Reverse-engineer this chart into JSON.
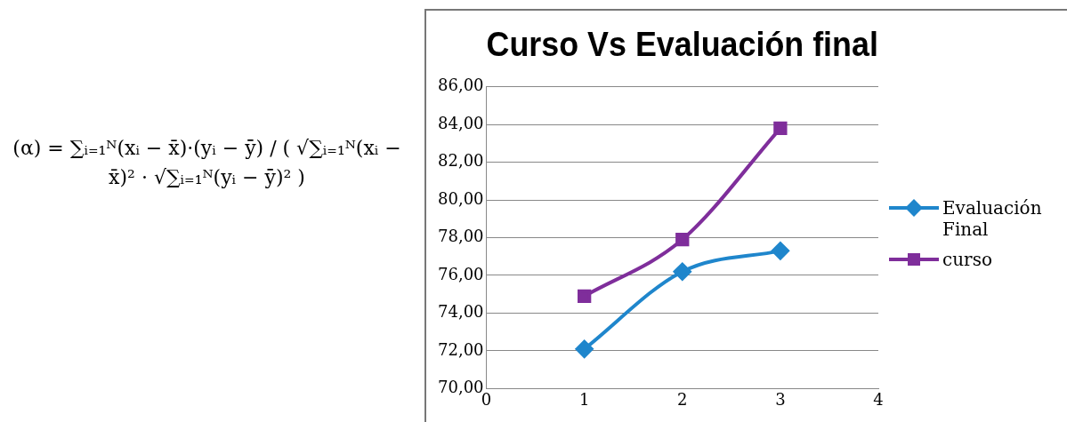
{
  "chart_data": {
    "type": "line",
    "title": "Curso Vs Evaluación final",
    "x": [
      1,
      2,
      3
    ],
    "series": [
      {
        "name": "Evaluación Final",
        "color": "#1f86cc",
        "values": [
          72.1,
          76.2,
          77.3
        ],
        "marker": "diamond"
      },
      {
        "name": "curso",
        "color": "#7f2e9b",
        "values": [
          74.9,
          77.9,
          83.8
        ],
        "marker": "square"
      }
    ],
    "xlim": [
      0,
      4
    ],
    "xticks": [
      0,
      1,
      2,
      3,
      4
    ],
    "ylim": [
      70,
      86
    ],
    "yticks": [
      {
        "value": 70,
        "label": "70,00"
      },
      {
        "value": 72,
        "label": "72,00"
      },
      {
        "value": 74,
        "label": "74,00"
      },
      {
        "value": 76,
        "label": "76,00"
      },
      {
        "value": 78,
        "label": "78,00"
      },
      {
        "value": 80,
        "label": "80,00"
      },
      {
        "value": 82,
        "label": "82,00"
      },
      {
        "value": 84,
        "label": "84,00"
      },
      {
        "value": 86,
        "label": "86,00"
      }
    ],
    "grid": "y",
    "legend": "right",
    "annotations": [
      "(α) = ∑ᵢ₌₁ᴺ(xᵢ − x̄)·(yᵢ − ȳ) / ( √∑ᵢ₌₁ᴺ(xᵢ − x̄)² · √∑ᵢ₌₁ᴺ(yᵢ − ȳ)² )"
    ]
  }
}
